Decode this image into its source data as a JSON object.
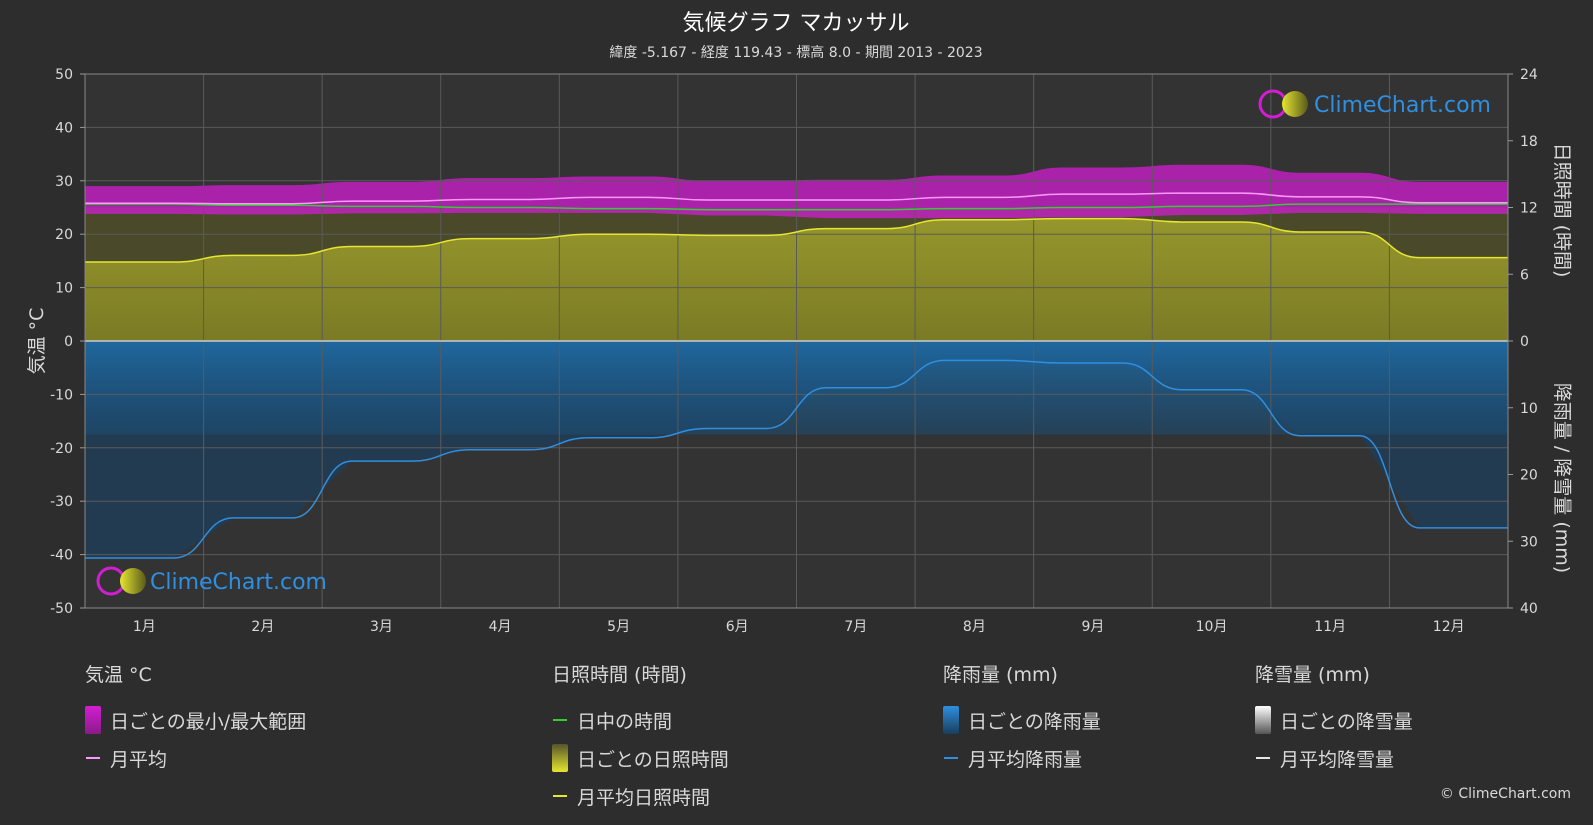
{
  "title": "気候グラフ マカッサル",
  "subtitle": "緯度 -5.167 - 経度 119.43 - 標高 8.0 - 期間 2013 - 2023",
  "watermark": "ClimeChart.com",
  "copyright": "© ClimeChart.com",
  "axes": {
    "left_label": "気温 °C",
    "right_top_label": "日照時間 (時間)",
    "right_bottom_label": "降雨量 / 降雪量 (mm)",
    "left_ticks": [
      "50",
      "40",
      "30",
      "20",
      "10",
      "0",
      "-10",
      "-20",
      "-30",
      "-40",
      "-50"
    ],
    "right_top_ticks": [
      "24",
      "18",
      "12",
      "6",
      "0"
    ],
    "right_bottom_ticks": [
      "10",
      "20",
      "30",
      "40"
    ]
  },
  "legend": {
    "temperature": {
      "title": "気温 °C",
      "items": [
        "日ごとの最小/最大範囲",
        "月平均"
      ]
    },
    "sunshine": {
      "title": "日照時間 (時間)",
      "items": [
        "日中の時間",
        "日ごとの日照時間",
        "月平均日照時間"
      ]
    },
    "rain": {
      "title": "降雨量 (mm)",
      "items": [
        "日ごとの降雨量",
        "月平均降雨量"
      ]
    },
    "snow": {
      "title": "降雪量 (mm)",
      "items": [
        "日ごとの降雪量",
        "月平均降雪量"
      ]
    }
  },
  "colors": {
    "background": "#2d2d2d",
    "temp_range": "#d21ed2",
    "temp_mean": "#ff99ff",
    "daylight": "#33cc33",
    "sunshine_fill": "#9a9a2c",
    "sunshine_mean": "#e6e632",
    "rain_fill": "#1f5f8f",
    "rain_mean": "#2f8fe0",
    "snow": "#e6e6e6"
  },
  "chart_data": {
    "type": "area",
    "categories": [
      "1月",
      "2月",
      "3月",
      "4月",
      "5月",
      "6月",
      "7月",
      "8月",
      "9月",
      "10月",
      "11月",
      "12月"
    ],
    "temperature_ylim": [
      -50,
      50
    ],
    "sunshine_ylim": [
      0,
      24
    ],
    "precip_ylim": [
      0,
      40
    ],
    "series": [
      {
        "name": "月平均",
        "unit": "°C",
        "values": [
          25.8,
          25.7,
          26.2,
          26.5,
          26.9,
          26.4,
          26.4,
          26.9,
          27.5,
          27.7,
          27.0,
          25.9
        ]
      },
      {
        "name": "日ごとの最小/最大範囲 (最小)",
        "unit": "°C",
        "values": [
          23.8,
          23.7,
          23.9,
          24.0,
          24.0,
          23.5,
          23.0,
          23.0,
          23.2,
          23.6,
          24.0,
          23.8
        ]
      },
      {
        "name": "日ごとの最小/最大範囲 (最大)",
        "unit": "°C",
        "values": [
          29.0,
          29.2,
          29.8,
          30.5,
          30.8,
          30.0,
          30.2,
          31.0,
          32.5,
          33.0,
          31.5,
          29.8
        ]
      },
      {
        "name": "日中の時間",
        "unit": "時間",
        "values": [
          12.3,
          12.2,
          12.1,
          12.0,
          11.9,
          11.8,
          11.8,
          11.9,
          12.0,
          12.1,
          12.3,
          12.3
        ]
      },
      {
        "name": "月平均日照時間",
        "unit": "時間",
        "values": [
          7.1,
          7.7,
          8.5,
          9.2,
          9.6,
          9.5,
          10.1,
          10.9,
          11.0,
          10.7,
          9.8,
          7.5
        ]
      },
      {
        "name": "月平均降雨量",
        "unit": "mm",
        "values": [
          32.5,
          26.5,
          18.0,
          16.3,
          14.5,
          13.1,
          7.0,
          2.9,
          3.3,
          7.3,
          14.2,
          28.0
        ]
      },
      {
        "name": "月平均降雪量",
        "unit": "mm",
        "values": [
          0,
          0,
          0,
          0,
          0,
          0,
          0,
          0,
          0,
          0,
          0,
          0
        ]
      }
    ]
  }
}
